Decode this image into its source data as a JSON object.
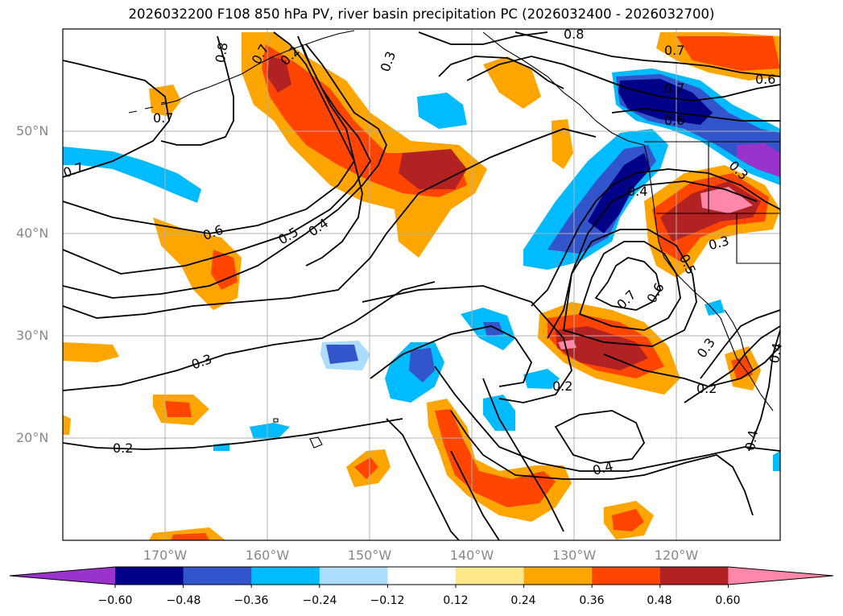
{
  "title": "2026032200 F108 850 hPa PV, river basin precipitation PC (2026032400 - 2026032700)",
  "lat_labels": [
    "50°N",
    "40°N",
    "30°N",
    "20°N"
  ],
  "lon_labels": [
    "170°W",
    "160°W",
    "150°W",
    "140°W",
    "130°W",
    "120°W"
  ],
  "colorbar": {
    "colors": [
      "#9933cc",
      "#000088",
      "#3355cc",
      "#00bbff",
      "#aaddff",
      "#ffffff",
      "#ffe88a",
      "#ffa500",
      "#ff4500",
      "#b22222",
      "#ff88aa"
    ],
    "tick_labels": [
      "−0.60",
      "−0.48",
      "−0.36",
      "−0.24",
      "−0.12",
      "0.12",
      "0.24",
      "0.36",
      "0.48",
      "0.60"
    ]
  },
  "contour_labels": [
    "0.8",
    "0.7",
    "0.7",
    "0.6",
    "0.5",
    "0.4",
    "0.3",
    "0.3",
    "0.2",
    "0.2",
    "0.8",
    "0.7",
    "0.7",
    "0.6",
    "0.6",
    "0.4",
    "0.3",
    "0.3",
    "0.5",
    "0.7",
    "0.6",
    "0.3",
    "0.2",
    "0.4",
    "0.4",
    "0.2",
    "0.4",
    "0.7"
  ]
}
